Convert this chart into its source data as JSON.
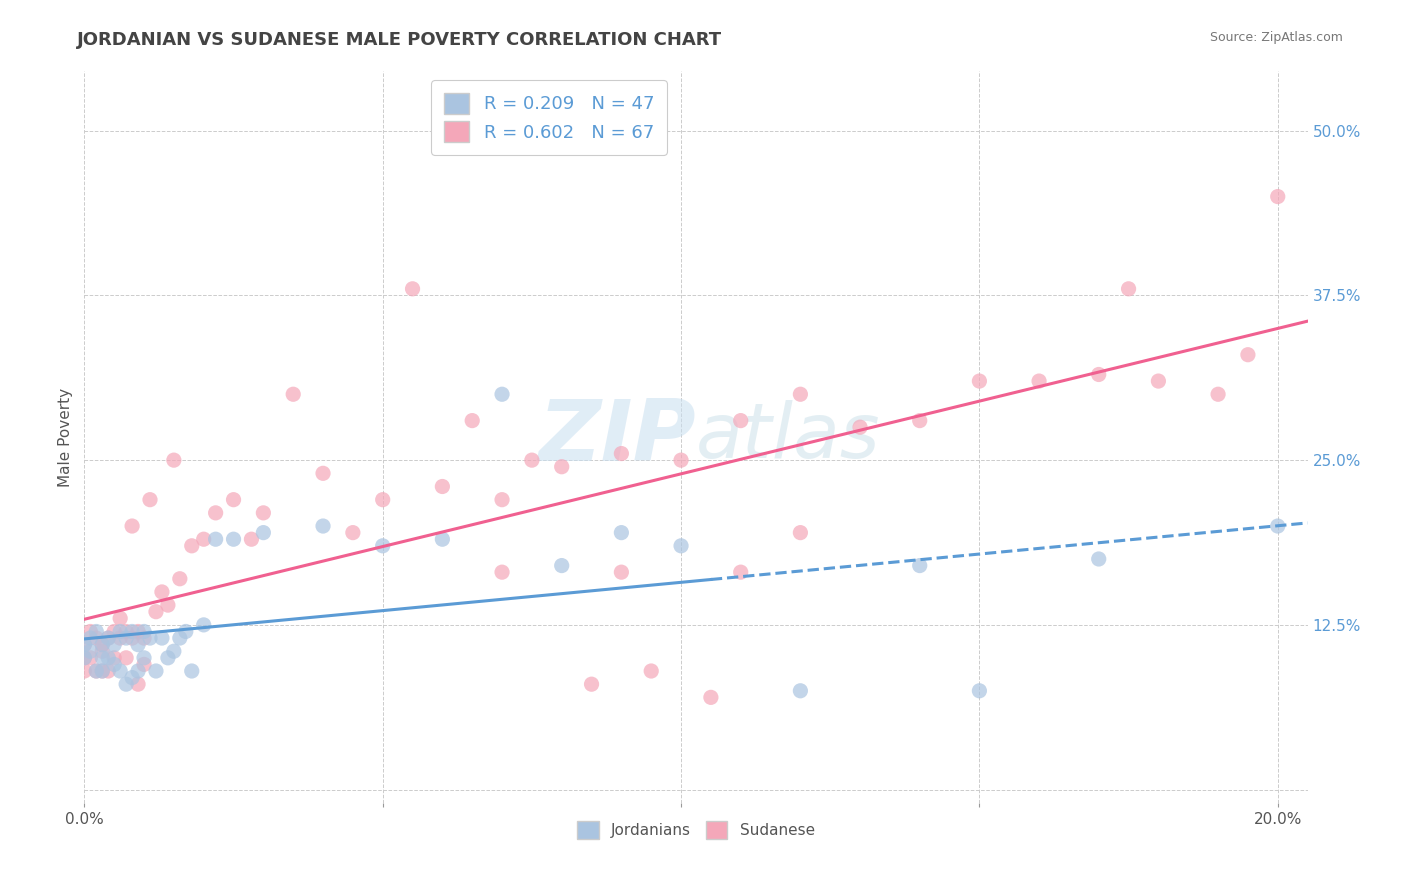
{
  "title": "JORDANIAN VS SUDANESE MALE POVERTY CORRELATION CHART",
  "source_text": "Source: ZipAtlas.com",
  "ylabel": "Male Poverty",
  "xlim": [
    0.0,
    0.205
  ],
  "ylim": [
    -0.01,
    0.545
  ],
  "x_ticks": [
    0.0,
    0.05,
    0.1,
    0.15,
    0.2
  ],
  "x_tick_labels": [
    "0.0%",
    "",
    "",
    "",
    "20.0%"
  ],
  "y_ticks": [
    0.125,
    0.25,
    0.375,
    0.5
  ],
  "y_tick_labels": [
    "12.5%",
    "25.0%",
    "37.5%",
    "50.0%"
  ],
  "grid_color": "#cccccc",
  "background_color": "#ffffff",
  "title_color": "#444444",
  "title_fontsize": 13,
  "watermark_color": "#c8dff0",
  "jordanian_color": "#aac4e0",
  "sudanese_color": "#f4a7b9",
  "jordanian_line_color": "#5b9bd5",
  "sudanese_line_color": "#f06090",
  "R_jordanian": 0.209,
  "N_jordanian": 47,
  "R_sudanese": 0.602,
  "N_sudanese": 67,
  "legend_label_jordanian": "Jordanians",
  "legend_label_sudanese": "Sudanese",
  "jordanian_scatter_x": [
    0.0,
    0.0,
    0.001,
    0.001,
    0.002,
    0.002,
    0.003,
    0.003,
    0.003,
    0.004,
    0.004,
    0.005,
    0.005,
    0.006,
    0.006,
    0.007,
    0.007,
    0.008,
    0.008,
    0.009,
    0.009,
    0.01,
    0.01,
    0.011,
    0.012,
    0.013,
    0.014,
    0.015,
    0.016,
    0.017,
    0.018,
    0.02,
    0.022,
    0.025,
    0.03,
    0.04,
    0.05,
    0.06,
    0.07,
    0.08,
    0.09,
    0.1,
    0.12,
    0.14,
    0.15,
    0.17,
    0.2
  ],
  "jordanian_scatter_y": [
    0.11,
    0.1,
    0.115,
    0.105,
    0.12,
    0.09,
    0.11,
    0.1,
    0.09,
    0.115,
    0.1,
    0.11,
    0.095,
    0.12,
    0.09,
    0.115,
    0.08,
    0.12,
    0.085,
    0.11,
    0.09,
    0.12,
    0.1,
    0.115,
    0.09,
    0.115,
    0.1,
    0.105,
    0.115,
    0.12,
    0.09,
    0.125,
    0.19,
    0.19,
    0.195,
    0.2,
    0.185,
    0.19,
    0.3,
    0.17,
    0.195,
    0.185,
    0.075,
    0.17,
    0.075,
    0.175,
    0.2
  ],
  "sudanese_scatter_x": [
    0.0,
    0.0,
    0.0,
    0.001,
    0.001,
    0.002,
    0.002,
    0.003,
    0.003,
    0.003,
    0.004,
    0.004,
    0.005,
    0.005,
    0.006,
    0.006,
    0.007,
    0.007,
    0.008,
    0.008,
    0.009,
    0.009,
    0.01,
    0.01,
    0.011,
    0.012,
    0.013,
    0.014,
    0.015,
    0.016,
    0.018,
    0.02,
    0.022,
    0.025,
    0.028,
    0.03,
    0.035,
    0.04,
    0.045,
    0.05,
    0.055,
    0.06,
    0.065,
    0.07,
    0.075,
    0.08,
    0.09,
    0.1,
    0.11,
    0.12,
    0.13,
    0.14,
    0.15,
    0.16,
    0.17,
    0.175,
    0.18,
    0.19,
    0.195,
    0.2,
    0.07,
    0.09,
    0.11,
    0.12,
    0.085,
    0.095,
    0.105
  ],
  "sudanese_scatter_y": [
    0.11,
    0.1,
    0.09,
    0.12,
    0.1,
    0.115,
    0.09,
    0.11,
    0.105,
    0.09,
    0.115,
    0.09,
    0.12,
    0.1,
    0.115,
    0.13,
    0.12,
    0.1,
    0.2,
    0.115,
    0.12,
    0.08,
    0.115,
    0.095,
    0.22,
    0.135,
    0.15,
    0.14,
    0.25,
    0.16,
    0.185,
    0.19,
    0.21,
    0.22,
    0.19,
    0.21,
    0.3,
    0.24,
    0.195,
    0.22,
    0.38,
    0.23,
    0.28,
    0.22,
    0.25,
    0.245,
    0.255,
    0.25,
    0.28,
    0.3,
    0.275,
    0.28,
    0.31,
    0.31,
    0.315,
    0.38,
    0.31,
    0.3,
    0.33,
    0.45,
    0.165,
    0.165,
    0.165,
    0.195,
    0.08,
    0.09,
    0.07
  ]
}
